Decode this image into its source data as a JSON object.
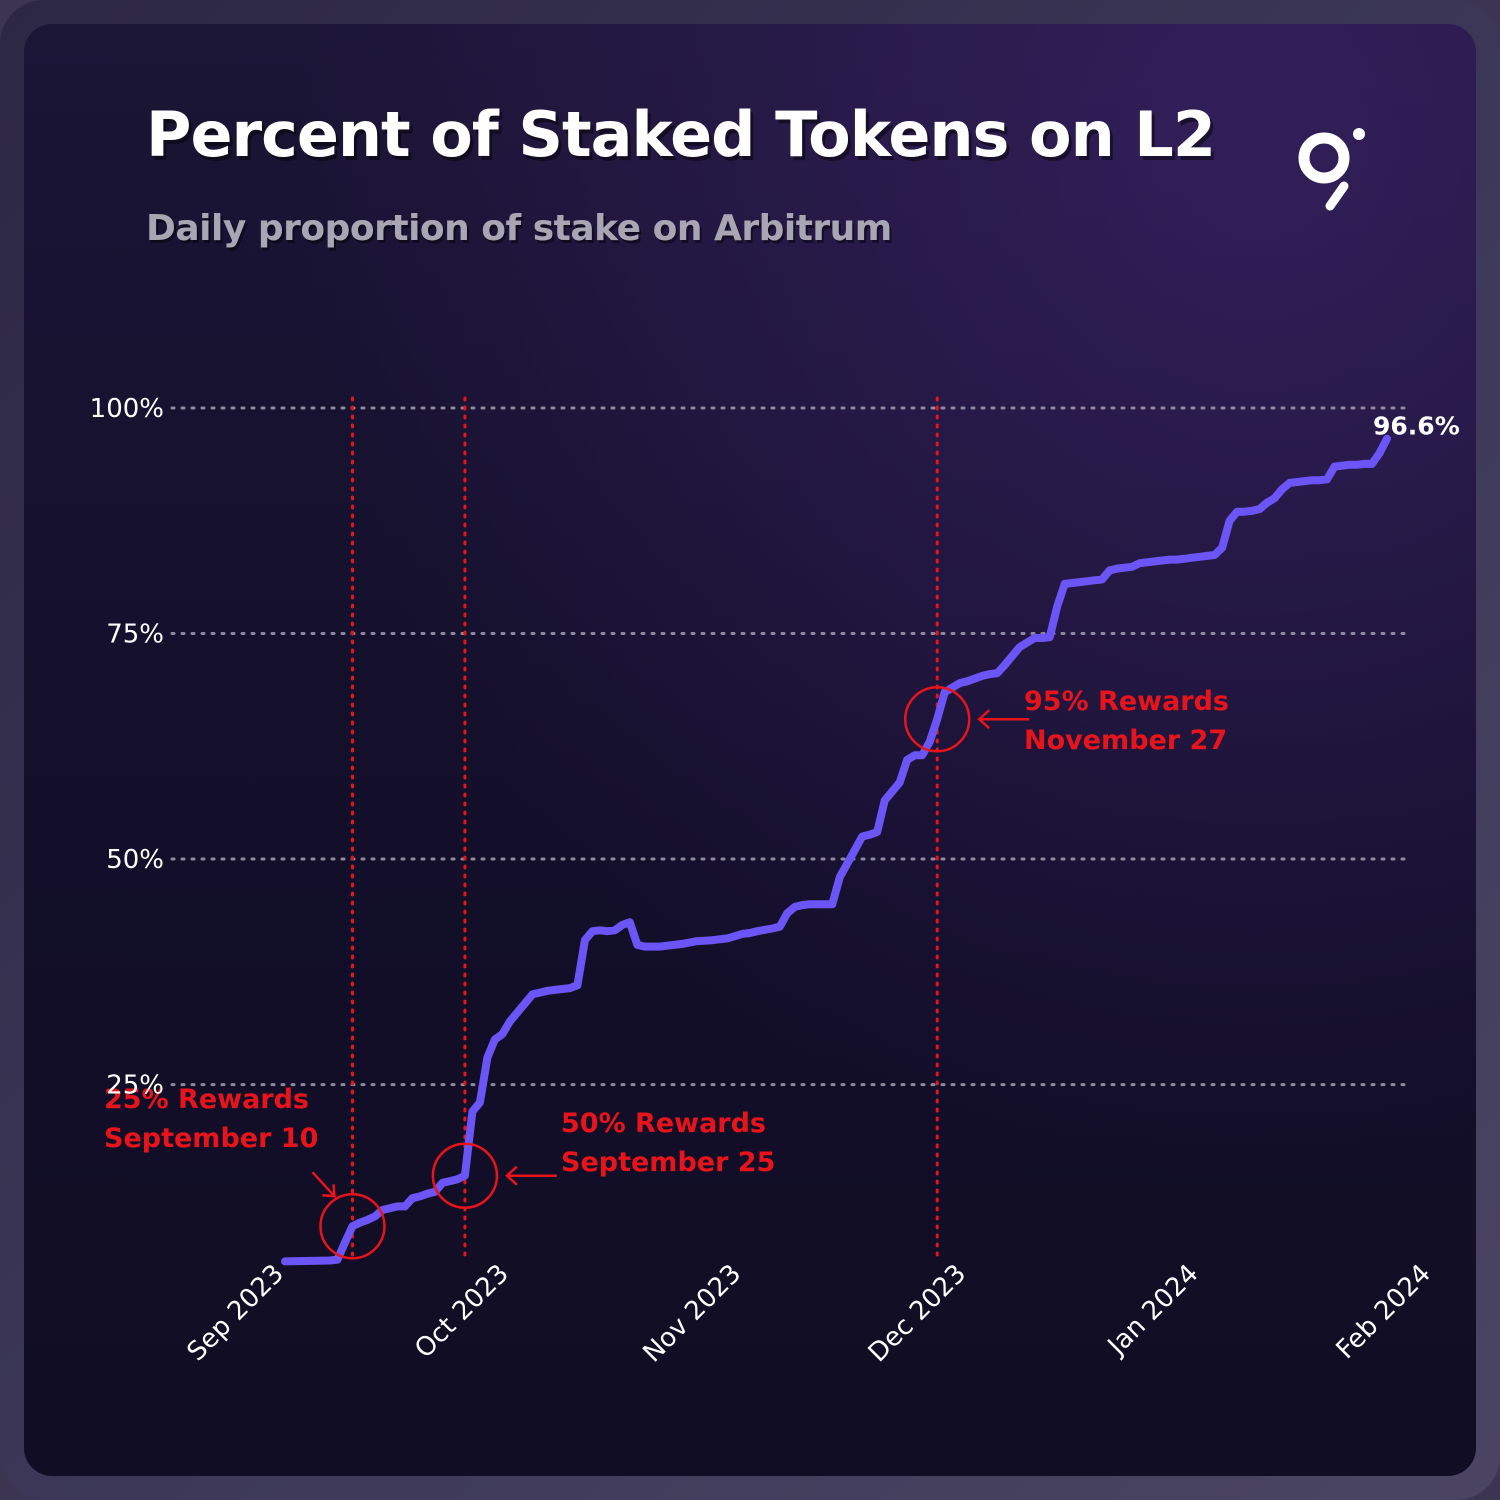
{
  "header": {
    "title": "Percent of Staked Tokens on L2",
    "subtitle": "Daily proportion of stake on Arbitrum",
    "logo_icon": "graph-logo-icon"
  },
  "colors": {
    "line": "#6c55f7",
    "annotation": "#e8141c",
    "grid": "#8c8a9c",
    "text": "#ffffff"
  },
  "chart_data": {
    "type": "line",
    "title": "Percent of Staked Tokens on L2",
    "subtitle": "Daily proportion of stake on Arbitrum",
    "xlabel": "",
    "ylabel": "",
    "x_ticks": [
      "Sep 2023",
      "Oct 2023",
      "Nov 2023",
      "Dec 2023",
      "Jan 2024",
      "Feb 2024"
    ],
    "y_ticks": [
      "25%",
      "50%",
      "75%",
      "100%"
    ],
    "y_tick_values": [
      25,
      50,
      75,
      100
    ],
    "xlim": [
      "2023-09-01",
      "2024-02-01"
    ],
    "ylim": [
      5,
      100
    ],
    "grid": "horizontal-dotted",
    "end_label": "96.6%",
    "series": [
      {
        "x": [
          "2023-09-01",
          "2023-09-07",
          "2023-09-08",
          "2023-09-09",
          "2023-09-10",
          "2023-09-11",
          "2023-09-12",
          "2023-09-13",
          "2023-09-14",
          "2023-09-15",
          "2023-09-16",
          "2023-09-17",
          "2023-09-18",
          "2023-09-19",
          "2023-09-20",
          "2023-09-21",
          "2023-09-22",
          "2023-09-23",
          "2023-09-24",
          "2023-09-25",
          "2023-09-26",
          "2023-09-27",
          "2023-09-28",
          "2023-09-29",
          "2023-09-30",
          "2023-10-01",
          "2023-10-02",
          "2023-10-03",
          "2023-10-04",
          "2023-10-05",
          "2023-10-06",
          "2023-10-07",
          "2023-10-08",
          "2023-10-09",
          "2023-10-10",
          "2023-10-11",
          "2023-10-12",
          "2023-10-13",
          "2023-10-14",
          "2023-10-15",
          "2023-10-16",
          "2023-10-17",
          "2023-10-18",
          "2023-10-19",
          "2023-10-20",
          "2023-10-21",
          "2023-10-22",
          "2023-10-24",
          "2023-10-26",
          "2023-10-28",
          "2023-10-30",
          "2023-11-01",
          "2023-11-02",
          "2023-11-03",
          "2023-11-05",
          "2023-11-06",
          "2023-11-07",
          "2023-11-08",
          "2023-11-09",
          "2023-11-10",
          "2023-11-11",
          "2023-11-12",
          "2023-11-13",
          "2023-11-14",
          "2023-11-15",
          "2023-11-16",
          "2023-11-17",
          "2023-11-18",
          "2023-11-19",
          "2023-11-20",
          "2023-11-21",
          "2023-11-22",
          "2023-11-23",
          "2023-11-24",
          "2023-11-25",
          "2023-11-26",
          "2023-11-27",
          "2023-11-28",
          "2023-11-29",
          "2023-11-30",
          "2023-12-01",
          "2023-12-02",
          "2023-12-03",
          "2023-12-04",
          "2023-12-05",
          "2023-12-06",
          "2023-12-07",
          "2023-12-08",
          "2023-12-09",
          "2023-12-10",
          "2023-12-11",
          "2023-12-12",
          "2023-12-13",
          "2023-12-14",
          "2023-12-15",
          "2023-12-16",
          "2023-12-17",
          "2023-12-18",
          "2023-12-19",
          "2023-12-20",
          "2023-12-21",
          "2023-12-22",
          "2023-12-23",
          "2023-12-24",
          "2023-12-25",
          "2023-12-26",
          "2023-12-27",
          "2023-12-28",
          "2023-12-29",
          "2023-12-30",
          "2023-12-31",
          "2024-01-01",
          "2024-01-02",
          "2024-01-03",
          "2024-01-04",
          "2024-01-05",
          "2024-01-06",
          "2024-01-07",
          "2024-01-08",
          "2024-01-09",
          "2024-01-10",
          "2024-01-11",
          "2024-01-12",
          "2024-01-13",
          "2024-01-14",
          "2024-01-15",
          "2024-01-16",
          "2024-01-17",
          "2024-01-18",
          "2024-01-19",
          "2024-01-20",
          "2024-01-21",
          "2024-01-22",
          "2024-01-23",
          "2024-01-24",
          "2024-01-25",
          "2024-01-26"
        ],
        "values": [
          5.4,
          5.5,
          5.6,
          7.5,
          9.3,
          9.7,
          10.0,
          10.4,
          11.1,
          11.3,
          11.5,
          11.5,
          12.4,
          12.6,
          12.9,
          13.1,
          14.1,
          14.3,
          14.5,
          14.9,
          22.0,
          23.0,
          28.0,
          30.0,
          30.6,
          32.0,
          33.0,
          34.0,
          35.0,
          35.2,
          35.4,
          35.5,
          35.6,
          35.7,
          36.0,
          41.0,
          42.0,
          42.1,
          42.0,
          42.1,
          42.7,
          43.0,
          40.5,
          40.3,
          40.3,
          40.3,
          40.4,
          40.6,
          40.9,
          41.0,
          41.2,
          41.7,
          41.8,
          42.0,
          42.3,
          42.5,
          44.0,
          44.7,
          44.9,
          45.0,
          45.0,
          45.0,
          45.0,
          48.0,
          49.5,
          51.0,
          52.5,
          52.7,
          53.0,
          56.5,
          57.5,
          58.5,
          61.0,
          61.5,
          61.5,
          63.0,
          65.5,
          68.5,
          69.0,
          69.5,
          69.7,
          70.0,
          70.3,
          70.5,
          70.6,
          71.5,
          72.5,
          73.5,
          74.0,
          74.5,
          74.5,
          74.6,
          78.0,
          80.5,
          80.6,
          80.7,
          80.8,
          80.9,
          81.0,
          82.0,
          82.2,
          82.3,
          82.4,
          82.8,
          82.9,
          83.0,
          83.1,
          83.2,
          83.2,
          83.3,
          83.4,
          83.5,
          83.6,
          83.7,
          84.5,
          87.5,
          88.5,
          88.5,
          88.6,
          88.8,
          89.5,
          90.0,
          91.0,
          91.7,
          91.8,
          91.9,
          92.0,
          92.0,
          92.1,
          93.5,
          93.6,
          93.7,
          93.7,
          93.8,
          93.8,
          95.0,
          96.6
        ]
      }
    ],
    "annotations": [
      {
        "label": "25%  Rewards",
        "date_text": "September 10",
        "x": "2023-09-10",
        "y": 9.3
      },
      {
        "label": "50%  Rewards",
        "date_text": "September 25",
        "x": "2023-09-25",
        "y": 14.9
      },
      {
        "label": "95%  Rewards",
        "date_text": "November 27",
        "x": "2023-11-27",
        "y": 65.5
      }
    ]
  }
}
